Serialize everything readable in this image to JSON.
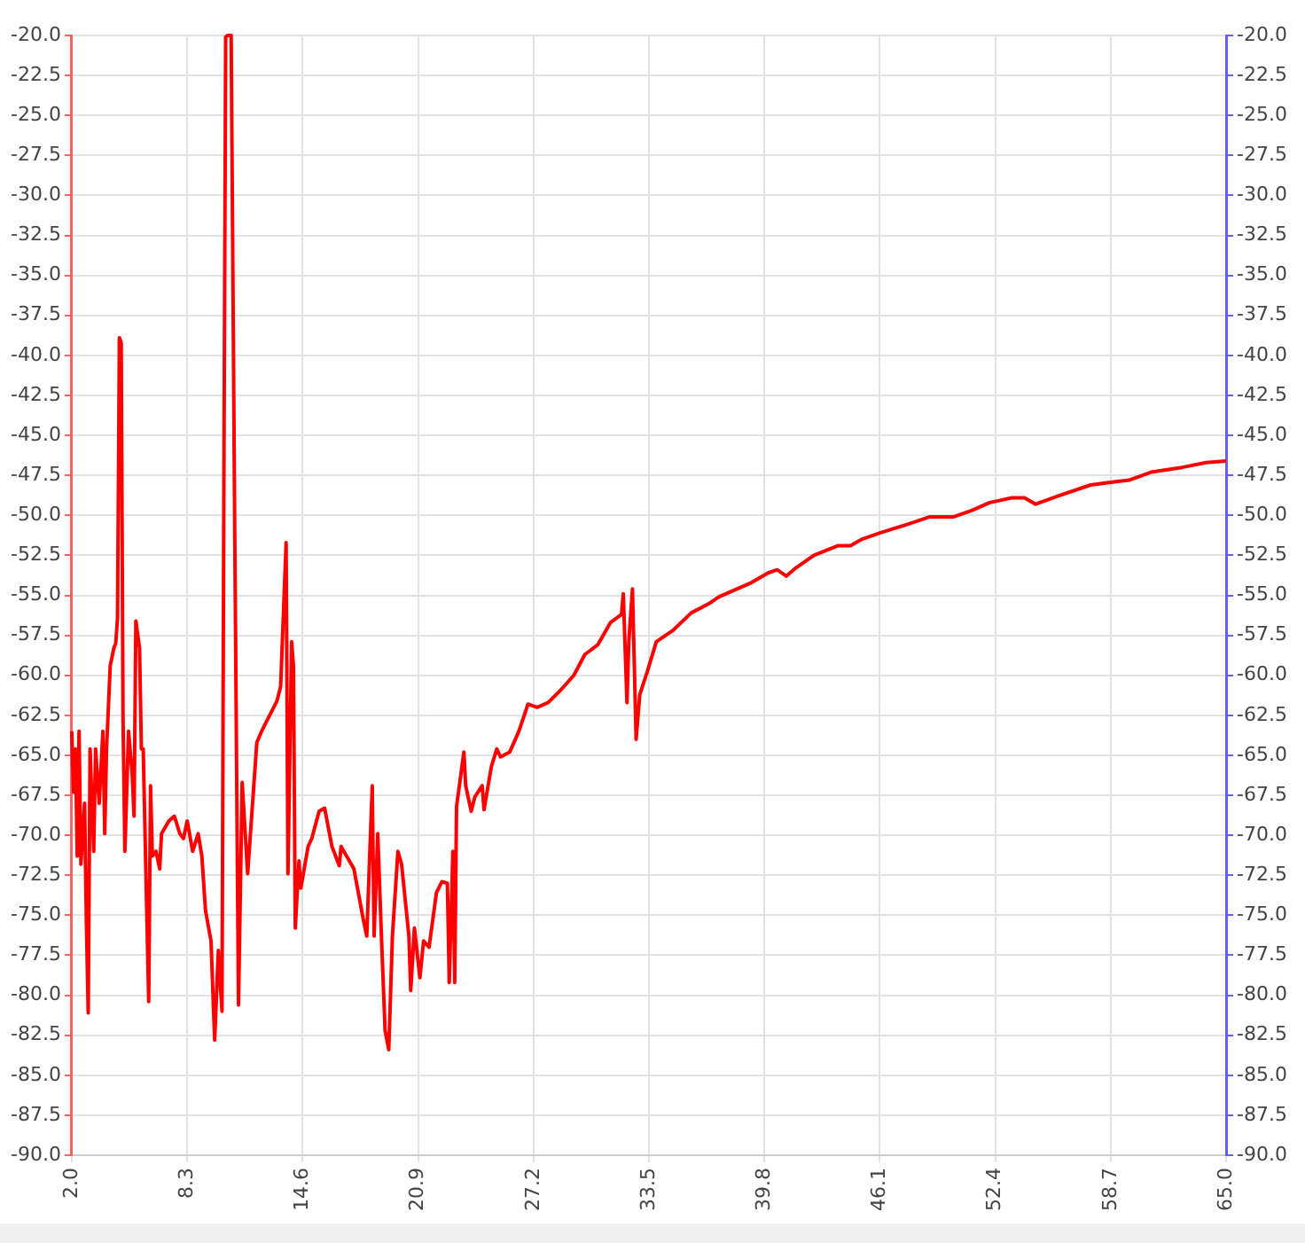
{
  "chart_data": {
    "type": "line",
    "x": [
      2.0,
      2.1,
      2.2,
      2.3,
      2.4,
      2.5,
      2.7,
      2.8,
      2.9,
      3.0,
      3.2,
      3.3,
      3.5,
      3.7,
      3.8,
      3.9,
      4.1,
      4.3,
      4.4,
      4.5,
      4.6,
      4.7,
      4.8,
      4.9,
      5.1,
      5.3,
      5.4,
      5.5,
      5.7,
      5.8,
      5.9,
      6.2,
      6.3,
      6.4,
      6.6,
      6.8,
      6.9,
      7.3,
      7.6,
      7.9,
      8.1,
      8.3,
      8.6,
      8.9,
      9.1,
      9.3,
      9.6,
      9.8,
      10.0,
      10.2,
      10.3,
      10.4,
      10.5,
      10.7,
      10.9,
      11.1,
      11.3,
      11.6,
      12.1,
      12.4,
      12.8,
      13.2,
      13.4,
      13.7,
      13.8,
      14.0,
      14.1,
      14.2,
      14.4,
      14.5,
      14.9,
      15.1,
      15.5,
      15.8,
      16.2,
      16.6,
      16.7,
      17.4,
      17.9,
      18.1,
      18.4,
      18.5,
      18.7,
      18.9,
      19.1,
      19.3,
      19.5,
      19.8,
      20.0,
      20.4,
      20.5,
      20.7,
      21.0,
      21.2,
      21.5,
      21.9,
      22.2,
      22.5,
      22.6,
      22.8,
      22.9,
      23.0,
      23.4,
      23.5,
      23.8,
      24.0,
      24.4,
      24.5,
      24.9,
      25.2,
      25.4,
      25.9,
      26.4,
      26.9,
      27.4,
      28.0,
      28.7,
      29.4,
      30.0,
      30.7,
      31.4,
      32.0,
      32.1,
      32.3,
      32.4,
      32.6,
      32.8,
      33.0,
      33.4,
      33.9,
      34.8,
      35.8,
      36.8,
      37.3,
      38.1,
      39.1,
      40.0,
      40.5,
      41.0,
      41.5,
      42.5,
      43.8,
      44.5,
      45.1,
      46.1,
      47.5,
      48.8,
      50.1,
      51.1,
      52.1,
      53.3,
      54.0,
      54.6,
      55.8,
      57.6,
      58.9,
      59.7,
      60.9,
      62.6,
      63.9,
      65.0
    ],
    "series": [
      {
        "color": "#ff0000",
        "values": [
          -63.5,
          -67.3,
          -64.6,
          -71.3,
          -63.5,
          -71.8,
          -68.0,
          -75.5,
          -81.1,
          -64.6,
          -71.0,
          -64.6,
          -68.0,
          -63.5,
          -69.9,
          -64.6,
          -59.4,
          -58.3,
          -58.0,
          -56.4,
          -38.9,
          -39.2,
          -62.8,
          -71.0,
          -63.5,
          -66.2,
          -68.8,
          -56.6,
          -58.3,
          -64.6,
          -64.6,
          -80.4,
          -66.9,
          -71.3,
          -71.0,
          -72.1,
          -69.9,
          -69.1,
          -68.8,
          -69.9,
          -70.2,
          -69.1,
          -71.0,
          -69.9,
          -71.3,
          -74.7,
          -76.6,
          -82.8,
          -77.2,
          -81.0,
          -48.7,
          -20.1,
          -20.0,
          -20.0,
          -51.7,
          -80.6,
          -66.7,
          -72.4,
          -64.2,
          -63.4,
          -62.5,
          -61.6,
          -60.7,
          -51.7,
          -72.4,
          -57.9,
          -59.4,
          -75.8,
          -71.6,
          -73.3,
          -70.7,
          -70.2,
          -68.5,
          -68.3,
          -70.7,
          -71.9,
          -70.7,
          -72.1,
          -75.2,
          -76.3,
          -66.9,
          -76.3,
          -69.9,
          -76.3,
          -82.2,
          -83.4,
          -76.3,
          -71.0,
          -71.8,
          -76.3,
          -79.7,
          -75.8,
          -78.9,
          -76.6,
          -77.0,
          -73.6,
          -72.9,
          -73.0,
          -79.2,
          -71.0,
          -79.2,
          -68.2,
          -64.8,
          -66.9,
          -68.5,
          -67.6,
          -66.9,
          -68.4,
          -65.7,
          -64.6,
          -65.1,
          -64.8,
          -63.5,
          -61.8,
          -62.0,
          -61.7,
          -60.9,
          -60.0,
          -58.7,
          -58.1,
          -56.7,
          -56.2,
          -54.9,
          -61.7,
          -57.9,
          -54.6,
          -64.0,
          -61.2,
          -59.8,
          -57.9,
          -57.2,
          -56.1,
          -55.5,
          -55.1,
          -54.7,
          -54.2,
          -53.6,
          -53.4,
          -53.8,
          -53.3,
          -52.5,
          -51.9,
          -51.9,
          -51.5,
          -51.1,
          -50.6,
          -50.1,
          -50.1,
          -49.7,
          -49.2,
          -48.9,
          -48.9,
          -49.3,
          -48.8,
          -48.1,
          -47.9,
          -47.8,
          -47.3,
          -47.0,
          -46.7,
          -46.6
        ]
      }
    ],
    "xlim": [
      2.0,
      65.0
    ],
    "xticks": [
      {
        "value": 2,
        "label": "2.0"
      },
      8.3,
      14.6,
      20.9,
      27.2,
      33.5,
      39.8,
      46.1,
      52.4,
      58.7,
      {
        "value": 65,
        "label": "65.0"
      }
    ],
    "ylim": [
      -90,
      -20
    ],
    "yticks": [
      {
        "value": -20,
        "label": "-20.0"
      },
      {
        "value": -22.5,
        "label": "-22.5"
      },
      {
        "value": -25,
        "label": "-25.0"
      },
      {
        "value": -27.5,
        "label": "-27.5"
      },
      {
        "value": -30,
        "label": "-30.0"
      },
      {
        "value": -32.5,
        "label": "-32.5"
      },
      {
        "value": -35,
        "label": "-35.0"
      },
      {
        "value": -37.5,
        "label": "-37.5"
      },
      {
        "value": -40,
        "label": "-40.0"
      },
      {
        "value": -42.5,
        "label": "-42.5"
      },
      {
        "value": -45,
        "label": "-45.0"
      },
      {
        "value": -47.5,
        "label": "-47.5"
      },
      {
        "value": -50,
        "label": "-50.0"
      },
      {
        "value": -52.5,
        "label": "-52.5"
      },
      {
        "value": -55,
        "label": "-55.0"
      },
      {
        "value": -57.5,
        "label": "-57.5"
      },
      {
        "value": -60,
        "label": "-60.0"
      },
      {
        "value": -62.5,
        "label": "-62.5"
      },
      {
        "value": -65,
        "label": "-65.0"
      },
      {
        "value": -67.5,
        "label": "-67.5"
      },
      {
        "value": -70,
        "label": "-70.0"
      },
      {
        "value": -72.5,
        "label": "-72.5"
      },
      {
        "value": -75,
        "label": "-75.0"
      },
      {
        "value": -77.5,
        "label": "-77.5"
      },
      {
        "value": -80,
        "label": "-80.0"
      },
      {
        "value": -82.5,
        "label": "-82.5"
      },
      {
        "value": -85,
        "label": "-85.0"
      },
      {
        "value": -87.5,
        "label": "-87.5"
      },
      {
        "value": -90,
        "label": "-90.0"
      }
    ],
    "y2lim": [
      -90,
      -20
    ],
    "y2ticks": [
      {
        "value": -20,
        "label": "-20.0"
      },
      {
        "value": -22.5,
        "label": "-22.5"
      },
      {
        "value": -25,
        "label": "-25.0"
      },
      {
        "value": -27.5,
        "label": "-27.5"
      },
      {
        "value": -30,
        "label": "-30.0"
      },
      {
        "value": -32.5,
        "label": "-32.5"
      },
      {
        "value": -35,
        "label": "-35.0"
      },
      {
        "value": -37.5,
        "label": "-37.5"
      },
      {
        "value": -40,
        "label": "-40.0"
      },
      {
        "value": -42.5,
        "label": "-42.5"
      },
      {
        "value": -45,
        "label": "-45.0"
      },
      {
        "value": -47.5,
        "label": "-47.5"
      },
      {
        "value": -50,
        "label": "-50.0"
      },
      {
        "value": -52.5,
        "label": "-52.5"
      },
      {
        "value": -55,
        "label": "-55.0"
      },
      {
        "value": -57.5,
        "label": "-57.5"
      },
      {
        "value": -60,
        "label": "-60.0"
      },
      {
        "value": -62.5,
        "label": "-62.5"
      },
      {
        "value": -65,
        "label": "-65.0"
      },
      {
        "value": -67.5,
        "label": "-67.5"
      },
      {
        "value": -70,
        "label": "-70.0"
      },
      {
        "value": -72.5,
        "label": "-72.5"
      },
      {
        "value": -75,
        "label": "-75.0"
      },
      {
        "value": -77.5,
        "label": "-77.5"
      },
      {
        "value": -80,
        "label": "-80.0"
      },
      {
        "value": -82.5,
        "label": "-82.5"
      },
      {
        "value": -85,
        "label": "-85.0"
      },
      {
        "value": -87.5,
        "label": "-87.5"
      },
      {
        "value": -90,
        "label": "-90.0"
      }
    ],
    "grid": true,
    "marker": "none",
    "line_style": "solid"
  }
}
